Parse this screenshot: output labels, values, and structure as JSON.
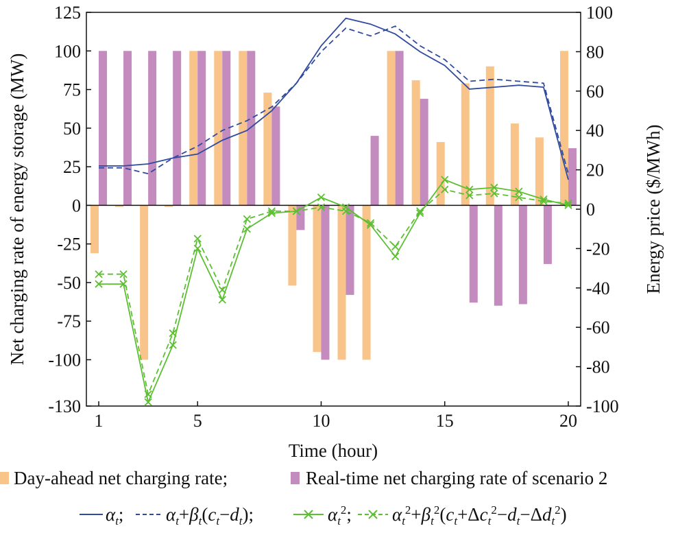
{
  "chart_data": {
    "type": "bar+line",
    "x": [
      1,
      2,
      3,
      4,
      5,
      6,
      7,
      8,
      9,
      10,
      11,
      12,
      13,
      14,
      15,
      16,
      17,
      18,
      19,
      20
    ],
    "xlabel": "Time (hour)",
    "xticks": [
      "1",
      "5",
      "10",
      "15",
      "20"
    ],
    "xlim": [
      0.5,
      20.5
    ],
    "ylabel_left": "Net charging rate of energy storage (MW)",
    "ylabel_right": "Energy price ($/MWh)",
    "yticks_left": [
      "125",
      "100",
      "75",
      "50",
      "25",
      "0",
      "-25",
      "-50",
      "-75",
      "-100",
      "-130"
    ],
    "yticks_left_values": [
      125,
      100,
      75,
      50,
      25,
      0,
      -25,
      -50,
      -75,
      -100,
      -130
    ],
    "yticks_right": [
      "100",
      "80",
      "60",
      "40",
      "20",
      "0",
      "-20",
      "-40",
      "-60",
      "-80",
      "-100"
    ],
    "yticks_right_values": [
      100,
      80,
      60,
      40,
      20,
      0,
      -20,
      -40,
      -60,
      -80,
      -100
    ],
    "ylim_left": [
      -130,
      125
    ],
    "ylim_right": [
      -100,
      100
    ],
    "bar_series": [
      {
        "name": "Day-ahead net charging rate",
        "axis": "left",
        "color": "#f9c48a",
        "values": [
          -31,
          -1,
          -100,
          -1,
          100,
          100,
          100,
          73,
          -52,
          -95,
          -100,
          -100,
          100,
          81,
          41,
          79,
          90,
          53,
          44,
          100
        ]
      },
      {
        "name": "Real-time net charging rate of scenario 2",
        "axis": "left",
        "color": "#c48bbf",
        "values": [
          100,
          100,
          100,
          100,
          100,
          100,
          100,
          64,
          -16,
          -100,
          -58,
          45,
          100,
          69,
          0,
          -63,
          -65,
          -64,
          -38,
          37
        ]
      }
    ],
    "line_series": [
      {
        "name": "α_t",
        "axis": "right",
        "color": "#2f4a9e",
        "style": "solid",
        "marker": "none",
        "values": [
          22,
          22,
          23,
          26,
          28,
          35,
          40,
          50,
          64,
          83,
          97,
          94,
          89,
          80,
          73,
          61,
          62,
          63,
          62,
          15
        ]
      },
      {
        "name": "α_t+β_t(c_t−d_t)",
        "axis": "right",
        "color": "#2f4a9e",
        "style": "dashed",
        "marker": "none",
        "values": [
          21,
          21,
          18,
          26,
          32,
          40,
          45,
          52,
          64,
          80,
          92,
          88,
          93,
          83,
          76,
          65,
          66,
          65,
          64,
          18
        ]
      },
      {
        "name": "α_t²",
        "axis": "right",
        "color": "#5cbf32",
        "style": "solid",
        "marker": "x",
        "values": [
          -38,
          -38,
          -98,
          -69,
          -20,
          -46,
          -10,
          -2,
          -1,
          6,
          1,
          -8,
          -24,
          -2,
          15,
          10,
          11,
          9,
          5,
          2
        ]
      },
      {
        "name": "α_t²+β_t²(c_t+Δc_t²−d_t−Δd_t²)",
        "axis": "right",
        "color": "#5cbf32",
        "style": "dashed",
        "marker": "x",
        "values": [
          -33,
          -33,
          -94,
          -63,
          -15,
          -41,
          -5,
          -1,
          -1,
          1,
          -1,
          -7,
          -19,
          -1,
          10,
          7,
          8,
          6,
          4,
          3
        ]
      }
    ]
  },
  "legend": {
    "line1": [
      {
        "kind": "bar",
        "label": "Day-ahead net charging rate;"
      },
      {
        "kind": "bar",
        "label": "Real-time net charging rate of scenario 2"
      }
    ]
  }
}
